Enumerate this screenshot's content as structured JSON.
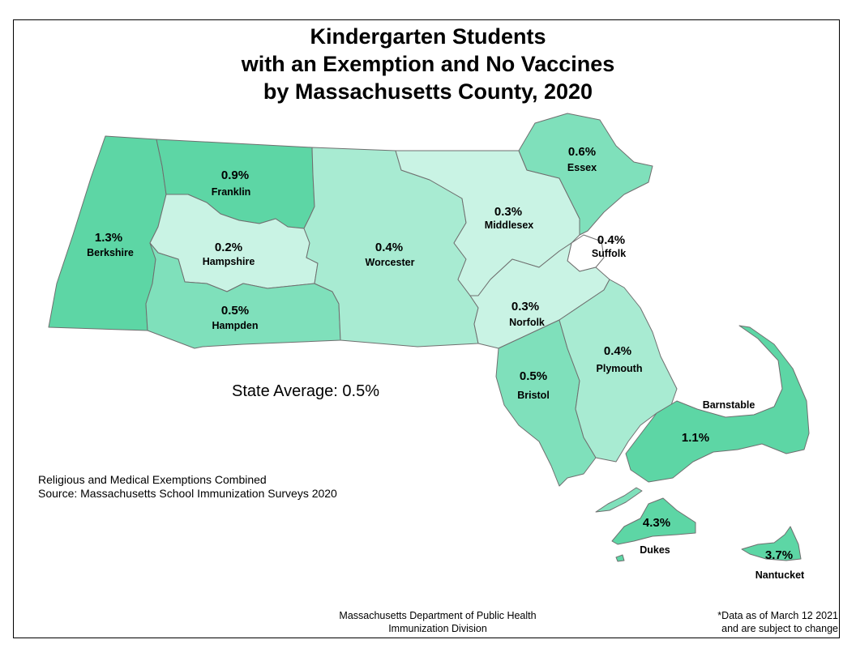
{
  "title": {
    "line1": "Kindergarten Students",
    "line2": "with an Exemption and No Vaccines",
    "line3": "by Massachusetts County, 2020"
  },
  "state_average": "State Average: 0.5%",
  "notes": {
    "line1": "Religious and Medical Exemptions Combined",
    "line2": "Source: Massachusetts School Immunization Surveys 2020"
  },
  "credit": {
    "line1": "Massachusetts Department of Public Health",
    "line2": "Immunization Division"
  },
  "data_note": {
    "line1": "*Data as of March 12 2021",
    "line2": "and are subject to change"
  },
  "colors": {
    "highest": "#5dd6a5",
    "high": "#7fe0bb",
    "middle": "#a8ebd2",
    "low": "#c9f3e4",
    "border": "#6f6f6f"
  },
  "counties": {
    "berkshire": {
      "name": "Berkshire",
      "value": "1.3%"
    },
    "franklin": {
      "name": "Franklin",
      "value": "0.9%"
    },
    "hampshire": {
      "name": "Hampshire",
      "value": "0.2%"
    },
    "hampden": {
      "name": "Hampden",
      "value": "0.5%"
    },
    "worcester": {
      "name": "Worcester",
      "value": "0.4%"
    },
    "middlesex": {
      "name": "Middlesex",
      "value": "0.3%"
    },
    "essex": {
      "name": "Essex",
      "value": "0.6%"
    },
    "suffolk": {
      "name": "Suffolk",
      "value": "0.4%"
    },
    "norfolk": {
      "name": "Norfolk",
      "value": "0.3%"
    },
    "bristol": {
      "name": "Bristol",
      "value": "0.5%"
    },
    "plymouth": {
      "name": "Plymouth",
      "value": "0.4%"
    },
    "barnstable": {
      "name": "Barnstable",
      "value": "1.1%"
    },
    "dukes": {
      "name": "Dukes",
      "value": "4.3%"
    },
    "nantucket": {
      "name": "Nantucket",
      "value": "3.7%"
    }
  }
}
